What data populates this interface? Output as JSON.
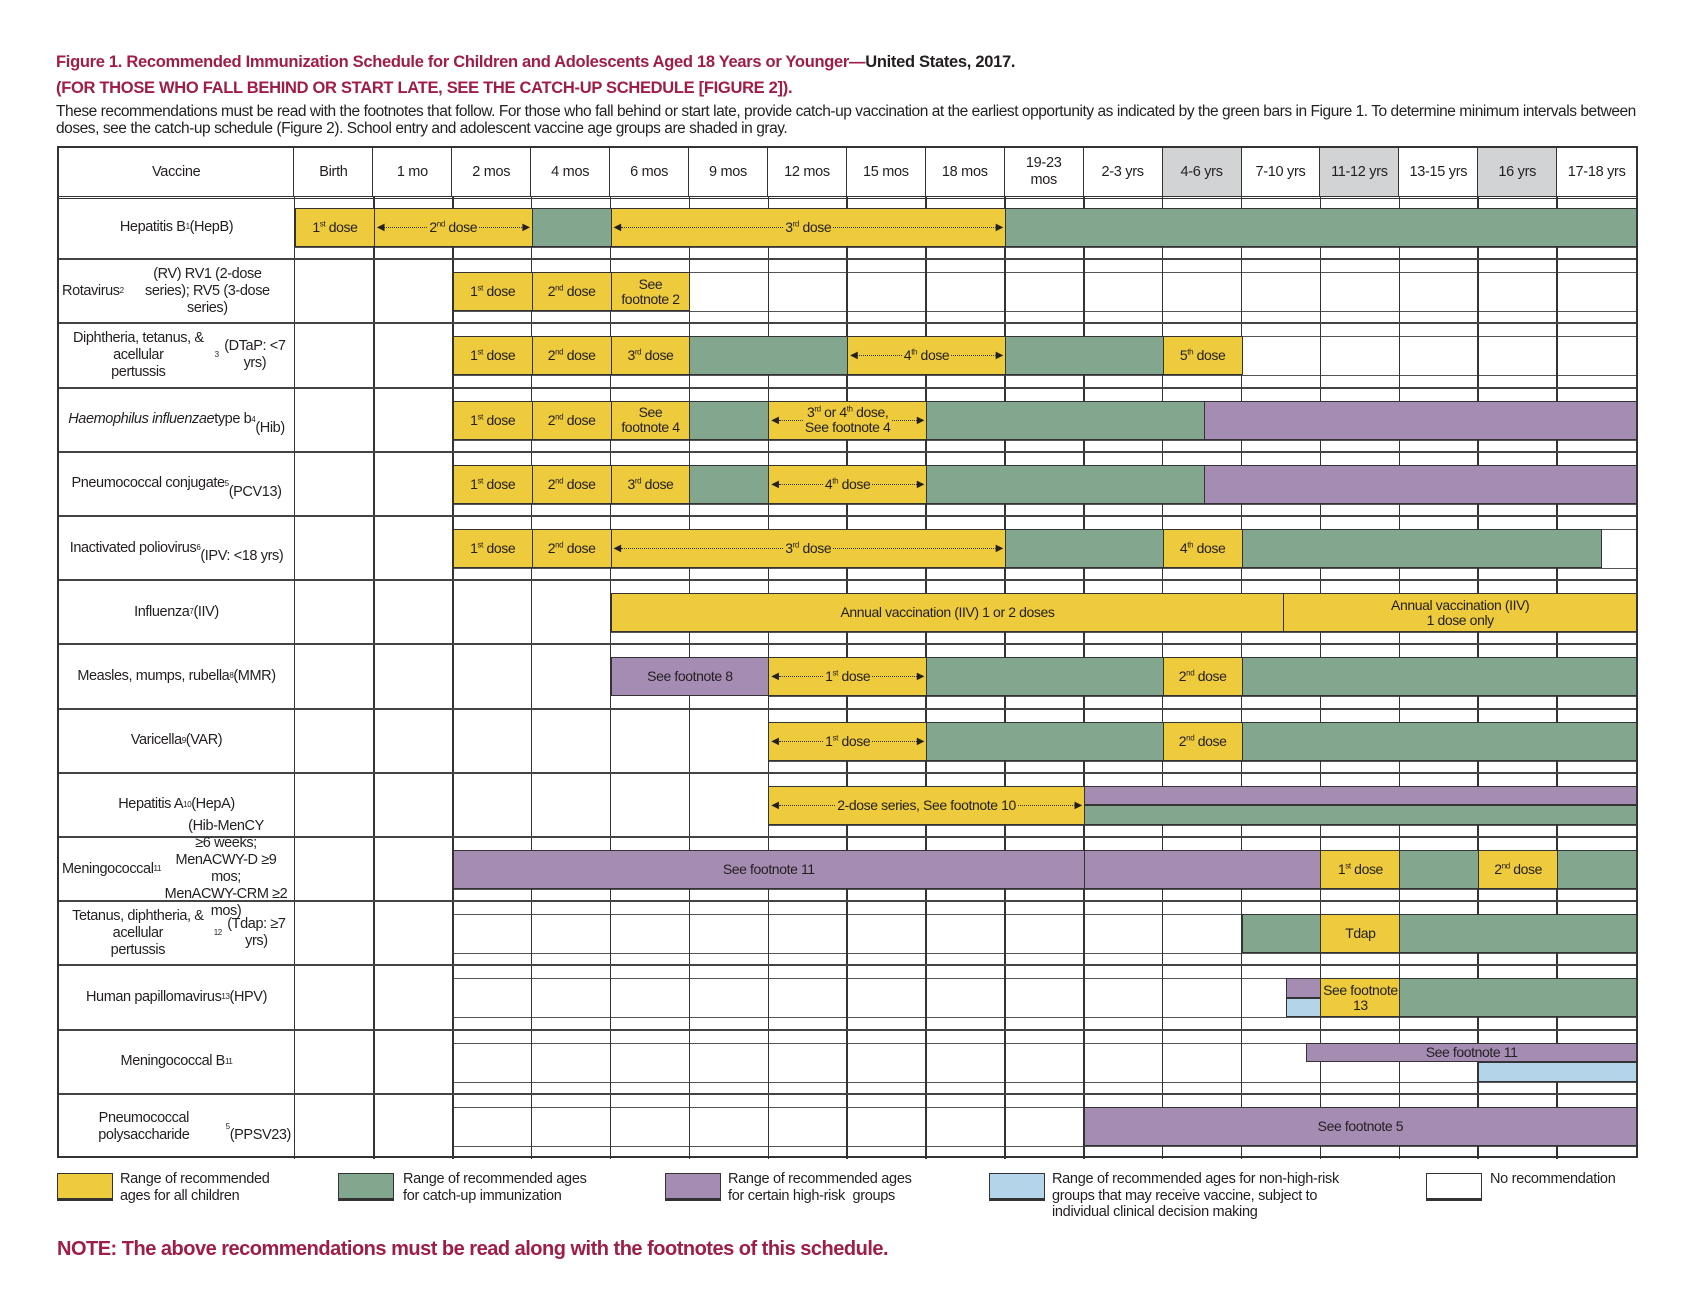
{
  "title": {
    "red": "Figure 1. Recommended Immunization Schedule for Children and Adolescents Aged 18 Years or Younger—",
    "black": "United States, 2017.",
    "subtitle": "(FOR THOSE WHO FALL BEHIND OR START LATE, SEE THE CATCH-UP SCHEDULE [FIGURE 2]).",
    "intro": "These recommendations must be read with the footnotes that follow. For those who fall behind or start late, provide catch-up vaccination at the earliest opportunity as indicated by the green bars in Figure 1. To determine minimum intervals between doses, see the catch-up schedule (Figure 2). School entry and adolescent vaccine age groups are shaded in gray."
  },
  "chart_data": {
    "type": "table",
    "vaccine_header": "Vaccine",
    "ages": [
      "Birth",
      "1 mo",
      "2 mos",
      "4 mos",
      "6 mos",
      "9 mos",
      "12 mos",
      "15 mos",
      "18 mos",
      "19-23\nmos",
      "2-3 yrs",
      "4-6 yrs",
      "7-10 yrs",
      "11-12 yrs",
      "13-15 yrs",
      "16 yrs",
      "17-18 yrs"
    ],
    "shaded_ages": [
      "4-6 yrs",
      "11-12 yrs",
      "16 yrs"
    ],
    "colors": {
      "yellow": "#eecb3c",
      "green": "#83a68f",
      "purple": "#a58cb3",
      "blue": "#b4d5e9",
      "white": "#ffffff"
    },
    "rows": [
      {
        "label": [
          {
            "t": "Hepatitis B"
          },
          {
            "t": "1",
            "sup": true
          },
          {
            "t": " (HepB)"
          }
        ],
        "bars": [
          {
            "c": "yellow",
            "from": 0,
            "to": 1,
            "label": "1st dose"
          },
          {
            "c": "yellow",
            "from": 1,
            "to": 3,
            "label": "2nd dose",
            "arrows": true
          },
          {
            "c": "green",
            "from": 3,
            "to": 4
          },
          {
            "c": "yellow",
            "from": 4,
            "to": 9,
            "label": "3rd dose",
            "arrows": true
          },
          {
            "c": "green",
            "from": 9,
            "to": 17
          }
        ]
      },
      {
        "label": [
          {
            "t": "Rotavirus"
          },
          {
            "t": "2",
            "sup": true
          },
          {
            "t": " (RV) RV1 (2-dose\nseries); RV5 (3-dose series)"
          }
        ],
        "bars": [
          {
            "c": "yellow",
            "from": 2,
            "to": 3,
            "label": "1st dose"
          },
          {
            "c": "yellow",
            "from": 3,
            "to": 4,
            "label": "2nd dose"
          },
          {
            "c": "yellow",
            "from": 4,
            "to": 5,
            "label": "See\nfootnote 2"
          }
        ]
      },
      {
        "label": [
          {
            "t": "Diphtheria, tetanus, & acellular\npertussis"
          },
          {
            "t": "3",
            "sup": true
          },
          {
            "t": " (DTaP: <7 yrs)"
          }
        ],
        "bars": [
          {
            "c": "yellow",
            "from": 2,
            "to": 3,
            "label": "1st dose"
          },
          {
            "c": "yellow",
            "from": 3,
            "to": 4,
            "label": "2nd dose"
          },
          {
            "c": "yellow",
            "from": 4,
            "to": 5,
            "label": "3rd dose"
          },
          {
            "c": "green",
            "from": 5,
            "to": 7
          },
          {
            "c": "yellow",
            "from": 7,
            "to": 9,
            "label": "4th dose",
            "arrows": true
          },
          {
            "c": "green",
            "from": 9,
            "to": 11
          },
          {
            "c": "yellow",
            "from": 11,
            "to": 12,
            "label": "5th dose"
          }
        ]
      },
      {
        "label": [
          {
            "t": "Haemophilus influenzae",
            "i": true
          },
          {
            "t": " type b"
          },
          {
            "t": "4",
            "sup": true
          },
          {
            "t": "\n(Hib)"
          }
        ],
        "bars": [
          {
            "c": "yellow",
            "from": 2,
            "to": 3,
            "label": "1st dose"
          },
          {
            "c": "yellow",
            "from": 3,
            "to": 4,
            "label": "2nd dose"
          },
          {
            "c": "yellow",
            "from": 4,
            "to": 5,
            "label": "See\nfootnote 4"
          },
          {
            "c": "green",
            "from": 5,
            "to": 6
          },
          {
            "c": "yellow",
            "from": 6,
            "to": 8,
            "label": "3rd or 4th dose,\nSee footnote 4",
            "arrows": true
          },
          {
            "c": "green",
            "from": 8,
            "to": 11.52
          },
          {
            "c": "purple",
            "from": 11.52,
            "to": 17
          }
        ]
      },
      {
        "label": [
          {
            "t": "Pneumococcal conjugate"
          },
          {
            "t": "5",
            "sup": true
          },
          {
            "t": "\n(PCV13)"
          }
        ],
        "bars": [
          {
            "c": "yellow",
            "from": 2,
            "to": 3,
            "label": "1st dose"
          },
          {
            "c": "yellow",
            "from": 3,
            "to": 4,
            "label": "2nd dose"
          },
          {
            "c": "yellow",
            "from": 4,
            "to": 5,
            "label": "3rd dose"
          },
          {
            "c": "green",
            "from": 5,
            "to": 6
          },
          {
            "c": "yellow",
            "from": 6,
            "to": 8,
            "label": "4th dose",
            "arrows": true
          },
          {
            "c": "green",
            "from": 8,
            "to": 11.52
          },
          {
            "c": "purple",
            "from": 11.52,
            "to": 17
          }
        ]
      },
      {
        "label": [
          {
            "t": "Inactivated poliovirus"
          },
          {
            "t": "6",
            "sup": true
          },
          {
            "t": "\n(IPV: <18 yrs)"
          }
        ],
        "bars": [
          {
            "c": "yellow",
            "from": 2,
            "to": 3,
            "label": "1st dose"
          },
          {
            "c": "yellow",
            "from": 3,
            "to": 4,
            "label": "2nd dose"
          },
          {
            "c": "yellow",
            "from": 4,
            "to": 9,
            "label": "3rd dose",
            "arrows": true
          },
          {
            "c": "green",
            "from": 9,
            "to": 11
          },
          {
            "c": "yellow",
            "from": 11,
            "to": 12,
            "label": "4th dose"
          },
          {
            "c": "green",
            "from": 12,
            "to": 16.56
          }
        ]
      },
      {
        "label": [
          {
            "t": "Influenza"
          },
          {
            "t": "7",
            "sup": true
          },
          {
            "t": " (IIV)"
          }
        ],
        "bars": [
          {
            "c": "yellow",
            "from": 4,
            "to": 12.53,
            "label": "Annual vaccination (IIV) 1 or 2 doses"
          },
          {
            "c": "yellow",
            "from": 12.53,
            "to": 17,
            "label": "Annual vaccination (IIV)\n1 dose only"
          }
        ]
      },
      {
        "label": [
          {
            "t": "Measles, mumps, rubella"
          },
          {
            "t": "8",
            "sup": true
          },
          {
            "t": " (MMR)"
          }
        ],
        "bars": [
          {
            "c": "purple",
            "from": 4,
            "to": 6,
            "label": "See footnote 8"
          },
          {
            "c": "yellow",
            "from": 6,
            "to": 8,
            "label": "1st dose",
            "arrows": true
          },
          {
            "c": "green",
            "from": 8,
            "to": 11
          },
          {
            "c": "yellow",
            "from": 11,
            "to": 12,
            "label": "2nd dose"
          },
          {
            "c": "green",
            "from": 12,
            "to": 17
          }
        ]
      },
      {
        "label": [
          {
            "t": "Varicella"
          },
          {
            "t": "9",
            "sup": true
          },
          {
            "t": " (VAR)"
          }
        ],
        "bars": [
          {
            "c": "yellow",
            "from": 6,
            "to": 8,
            "label": "1st dose",
            "arrows": true
          },
          {
            "c": "green",
            "from": 8,
            "to": 11
          },
          {
            "c": "yellow",
            "from": 11,
            "to": 12,
            "label": "2nd dose"
          },
          {
            "c": "green",
            "from": 12,
            "to": 17
          }
        ]
      },
      {
        "label": [
          {
            "t": "Hepatitis A"
          },
          {
            "t": "10",
            "sup": true
          },
          {
            "t": " (HepA)"
          }
        ],
        "bars": [
          {
            "c": "yellow",
            "from": 6,
            "to": 10,
            "label": "2-dose series, See footnote 10",
            "arrows": true
          },
          {
            "c": "purple",
            "from": 10,
            "to": 17,
            "half": "top"
          },
          {
            "c": "green",
            "from": 10,
            "to": 17,
            "half": "bottom"
          }
        ]
      },
      {
        "label": [
          {
            "t": "Meningococcal"
          },
          {
            "t": "11",
            "sup": true
          },
          {
            "t": " (Hib-MenCY\n≥6 weeks; MenACWY-D ≥9 mos;\nMenACWY-CRM ≥2 mos)"
          }
        ],
        "bars": [
          {
            "c": "purple",
            "from": 2,
            "to": 10,
            "label": "See footnote 11"
          },
          {
            "c": "purple",
            "from": 10,
            "to": 13
          },
          {
            "c": "yellow",
            "from": 13,
            "to": 14,
            "label": "1st dose"
          },
          {
            "c": "green",
            "from": 14,
            "to": 15
          },
          {
            "c": "yellow",
            "from": 15,
            "to": 16,
            "label": "2nd dose"
          },
          {
            "c": "green",
            "from": 16,
            "to": 17
          }
        ]
      },
      {
        "label": [
          {
            "t": "Tetanus, diphtheria, & acellular\npertussis"
          },
          {
            "t": "12",
            "sup": true
          },
          {
            "t": " (Tdap: ≥7 yrs)"
          }
        ],
        "bars": [
          {
            "c": "green",
            "from": 12,
            "to": 13
          },
          {
            "c": "yellow",
            "from": 13,
            "to": 14,
            "label": "Tdap"
          },
          {
            "c": "green",
            "from": 14,
            "to": 17
          }
        ]
      },
      {
        "label": [
          {
            "t": "Human papillomavirus"
          },
          {
            "t": "13",
            "sup": true
          },
          {
            "t": " (HPV)"
          }
        ],
        "bars": [
          {
            "c": "purple",
            "from": 12.56,
            "to": 13,
            "half": "top"
          },
          {
            "c": "blue",
            "from": 12.56,
            "to": 13,
            "half": "bottom"
          },
          {
            "c": "yellow",
            "from": 13,
            "to": 14,
            "label": "See footnote\n13"
          },
          {
            "c": "green",
            "from": 14,
            "to": 17
          }
        ]
      },
      {
        "label": [
          {
            "t": "Meningococcal B"
          },
          {
            "t": "11",
            "sup": true
          }
        ],
        "bars": [
          {
            "c": "purple",
            "from": 12.82,
            "to": 17,
            "half": "top",
            "label": "See footnote 11"
          },
          {
            "c": "blue",
            "from": 15,
            "to": 17,
            "half": "bottom"
          }
        ]
      },
      {
        "label": [
          {
            "t": "Pneumococcal polysaccharide"
          },
          {
            "t": "5",
            "sup": true
          },
          {
            "t": "\n(PPSV23)"
          }
        ],
        "bars": [
          {
            "c": "purple",
            "from": 10,
            "to": 17,
            "label": "See footnote 5"
          }
        ]
      }
    ]
  },
  "legend": [
    {
      "color": "yellow",
      "text": "Range of recommended\nages for all children"
    },
    {
      "color": "green",
      "text": "Range of recommended ages\nfor catch-up immunization"
    },
    {
      "color": "purple",
      "text": "Range of recommended ages\nfor certain high-risk  groups"
    },
    {
      "color": "blue",
      "text": "Range of recommended ages for non-high-risk\ngroups that may receive vaccine, subject to\nindividual clinical decision making"
    },
    {
      "color": "white",
      "text": "No recommendation"
    }
  ],
  "note": "NOTE: The above recommendations must be read along with the footnotes of this schedule."
}
